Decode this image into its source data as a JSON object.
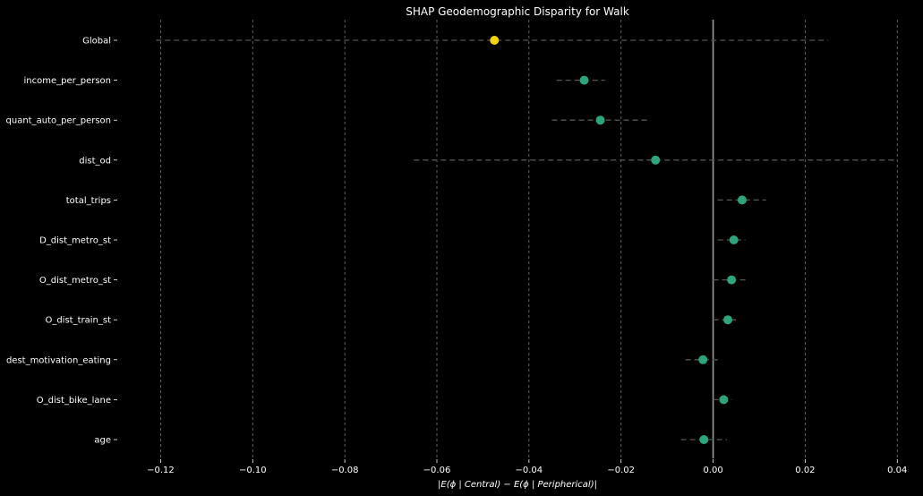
{
  "chart_data": {
    "type": "scatter",
    "title": "SHAP Geodemographic Disparity for Walk",
    "xlabel": "|E(ϕ | Central) − E(ϕ | Peripherical)|",
    "ylabel": "",
    "xlim": [
      -0.13,
      0.045
    ],
    "xticks": [
      -0.12,
      -0.1,
      -0.08,
      -0.06,
      -0.04,
      -0.02,
      0.0,
      0.02,
      0.04
    ],
    "xtick_labels": [
      "−0.12",
      "−0.10",
      "−0.08",
      "−0.06",
      "−0.04",
      "−0.02",
      "0.00",
      "0.02",
      "0.04"
    ],
    "grid": "x-dashed",
    "zero_line": true,
    "categories": [
      "Global",
      "income_per_person",
      "quant_auto_per_person",
      "dist_od",
      "total_trips",
      "D_dist_metro_st",
      "O_dist_metro_st",
      "O_dist_train_st",
      "dest_motivation_eating",
      "O_dist_bike_lane",
      "age"
    ],
    "values": [
      -0.0475,
      -0.028,
      -0.0245,
      -0.0125,
      0.0063,
      0.0045,
      0.004,
      0.0032,
      -0.0022,
      0.0023,
      -0.002
    ],
    "interval_low": [
      -0.121,
      -0.034,
      -0.035,
      -0.065,
      0.001,
      0.001,
      0.0,
      0.0,
      -0.006,
      0.0,
      -0.007
    ],
    "interval_high": [
      0.025,
      -0.0235,
      -0.014,
      0.04,
      0.0115,
      0.007,
      0.007,
      0.005,
      0.0015,
      0.004,
      0.003
    ],
    "colors": {
      "highlight": "#f0d20f",
      "point": "#2ca57c",
      "interval": "#555555",
      "grid": "#777777",
      "zero_line": "#9a9a9a"
    }
  }
}
